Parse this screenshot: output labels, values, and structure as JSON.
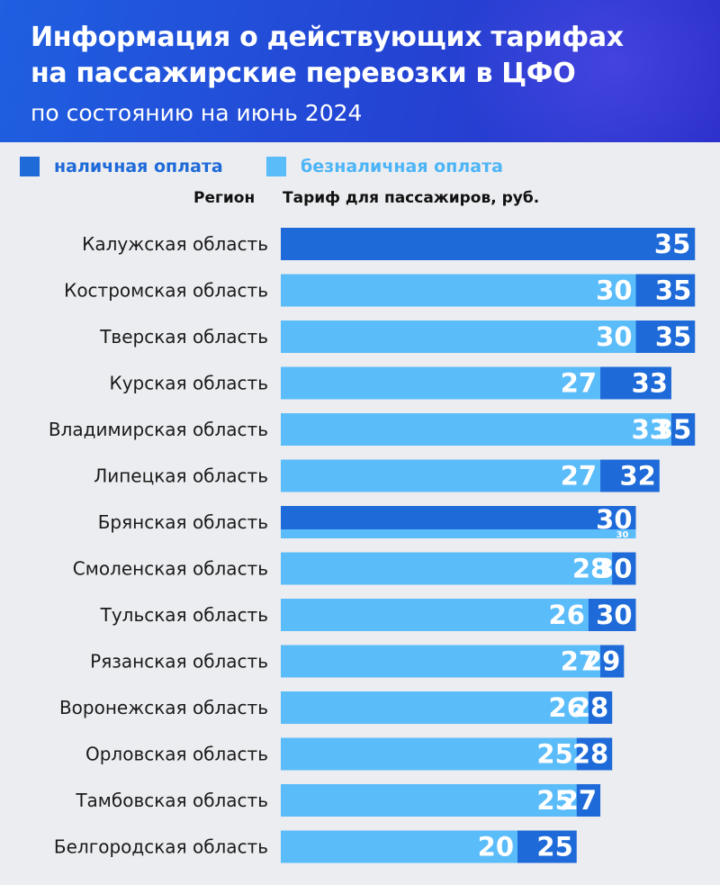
{
  "header": {
    "title_line1": "Информация о действующих тарифах",
    "title_line2": "на пассажирские перевозки в ЦФО",
    "subtitle": "по состоянию на июнь 2024"
  },
  "legend": {
    "cash": {
      "label": "наличная оплата",
      "color": "#1e6ad9"
    },
    "cashless": {
      "label": "безналичная оплата",
      "color": "#5bbcfa"
    }
  },
  "columns": {
    "region": "Регион",
    "tariff": "Тариф для пассажиров, руб."
  },
  "chart_data": {
    "type": "bar",
    "orientation": "horizontal",
    "title": "Информация о действующих тарифах на пассажирские перевозки в ЦФО",
    "subtitle": "по состоянию на июнь 2024",
    "xlabel": "Тариф для пассажиров, руб.",
    "ylabel": "Регион",
    "categories": [
      "Калужская область",
      "Костромская область",
      "Тверская область",
      "Курская область",
      "Владимирская область",
      "Липецкая область",
      "Брянская область",
      "Смоленская область",
      "Тульская область",
      "Рязанская область",
      "Воронежская область",
      "Орловская область",
      "Тамбовская область",
      "Белгородская область"
    ],
    "series": [
      {
        "name": "наличная оплата",
        "color": "#1e6ad9",
        "values": [
          35,
          35,
          35,
          33,
          35,
          32,
          30,
          30,
          30,
          29,
          28,
          28,
          27,
          25
        ]
      },
      {
        "name": "безналичная оплата",
        "color": "#5bbcfa",
        "values": [
          null,
          30,
          30,
          27,
          33,
          27,
          30,
          28,
          26,
          27,
          26,
          25,
          25,
          20
        ]
      }
    ],
    "xlim": [
      0,
      35
    ],
    "grid": false,
    "legend_position": "top-left"
  }
}
